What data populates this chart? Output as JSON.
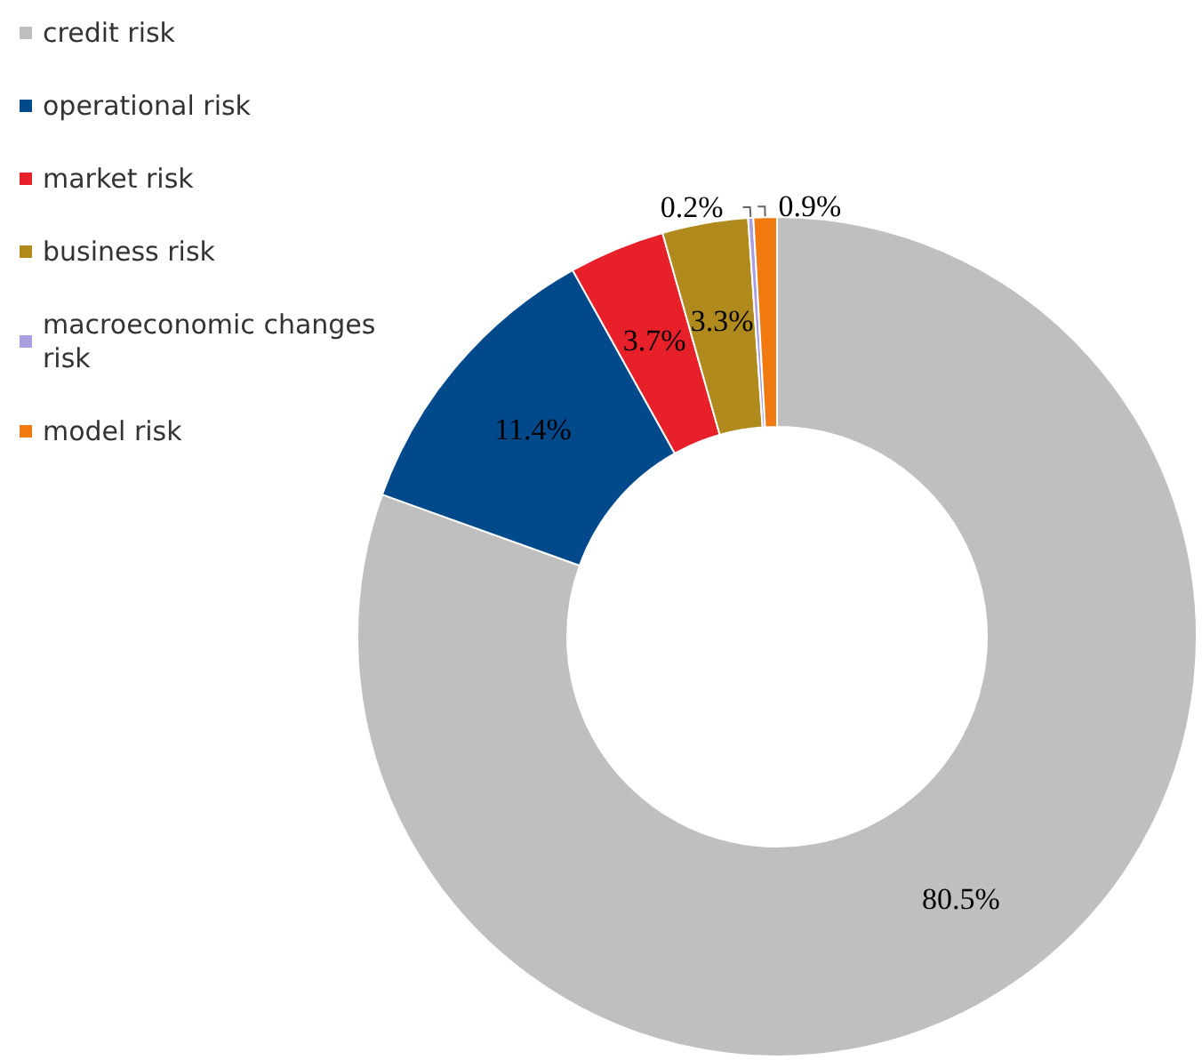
{
  "chart_data": {
    "type": "donut",
    "categories": [
      "credit risk",
      "operational risk",
      "market risk",
      "business risk",
      "macroeconomic changes risk",
      "model risk"
    ],
    "values": [
      80.5,
      11.4,
      3.7,
      3.3,
      0.2,
      0.9
    ],
    "colors": [
      "#bfbfbf",
      "#004a8c",
      "#e8202a",
      "#b08a1c",
      "#a99de0",
      "#f07a10"
    ],
    "value_labels": [
      "80.5%",
      "11.4%",
      "3.7%",
      "3.3%",
      "0.2%",
      "0.9%"
    ],
    "legend": "top left"
  }
}
